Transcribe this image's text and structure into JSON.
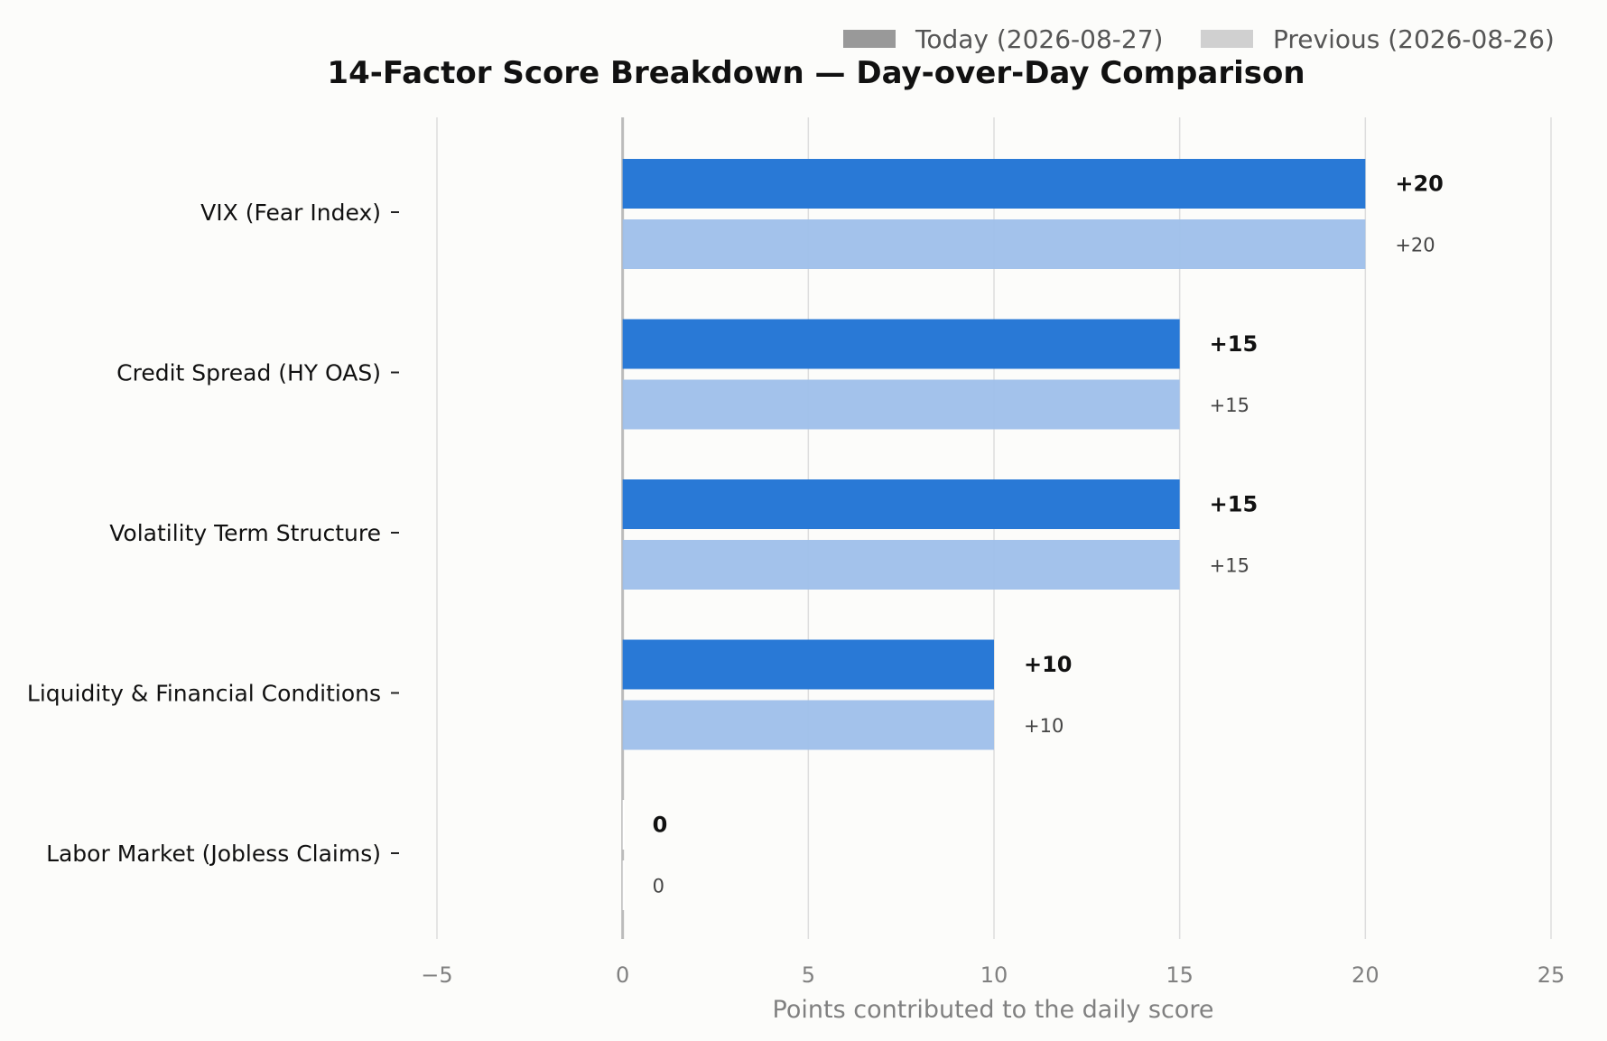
{
  "chart_data": {
    "type": "bar",
    "orientation": "horizontal",
    "title": "14-Factor Score Breakdown — Day-over-Day Comparison",
    "xlabel": "Points contributed to the daily score",
    "ylabel": "",
    "xlim": [
      -5,
      25
    ],
    "xticks": [
      -5,
      0,
      5,
      10,
      15,
      20,
      25
    ],
    "xtick_labels": [
      "−5",
      "0",
      "5",
      "10",
      "15",
      "20",
      "25"
    ],
    "grid": "vertical",
    "legend_position": "top-right",
    "categories": [
      "VIX (Fear Index)",
      "Credit Spread (HY OAS)",
      "Volatility Term Structure",
      "Liquidity & Financial Conditions",
      "Labor Market (Jobless Claims)"
    ],
    "series": [
      {
        "name": "Today (2026-08-27)",
        "values": [
          20,
          15,
          15,
          10,
          0
        ],
        "value_labels": [
          "+20",
          "+15",
          "+15",
          "+10",
          "0"
        ],
        "color": "#2979d6",
        "legend_color": "#999999"
      },
      {
        "name": "Previous (2026-08-26)",
        "values": [
          20,
          15,
          15,
          10,
          0
        ],
        "value_labels": [
          "+20",
          "+15",
          "+15",
          "+10",
          "0"
        ],
        "color": "#9ebfea",
        "legend_color": "#d0d0d0"
      }
    ]
  }
}
